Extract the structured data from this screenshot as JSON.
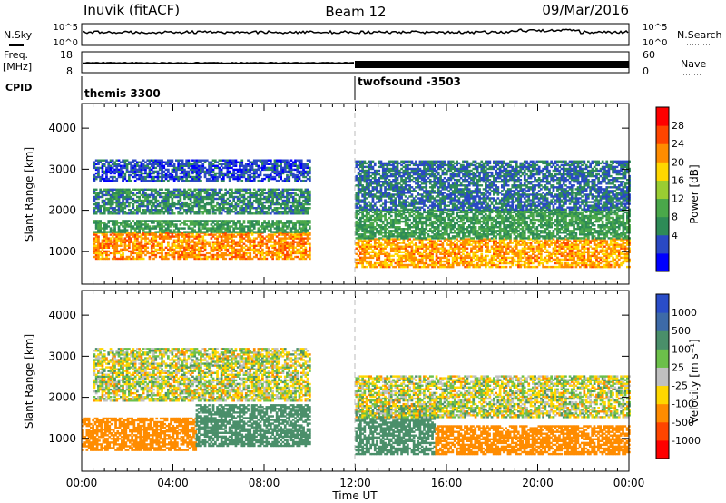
{
  "header": {
    "station": "Inuvik (fitACF)",
    "beam": "Beam 12",
    "date": "09/Mar/2016"
  },
  "top_panels": {
    "nsky_label": "N.Sky",
    "nsearch_label": "N.Search",
    "noise_ticks_left": [
      "10^5",
      "10^0"
    ],
    "noise_ticks_right": [
      "10^5",
      "10^0"
    ],
    "freq_label": "Freq.",
    "freq_unit": "[MHz]",
    "freq_ticks": [
      "18",
      "8"
    ],
    "nave_label": "Nave",
    "nave_ticks": [
      "60",
      "0"
    ],
    "cpid_label": "CPID",
    "cpid_programs": [
      {
        "name": "themis 3300",
        "start_hour": 0
      },
      {
        "name": "twofsound -3503",
        "start_hour": 12
      }
    ]
  },
  "axes": {
    "ylabel": "Slant Range [km]",
    "xlabel": "Time UT",
    "y_ticks": [
      1000,
      2000,
      3000,
      4000
    ],
    "x_ticks": [
      "00:00",
      "04:00",
      "08:00",
      "12:00",
      "16:00",
      "20:00",
      "00:00"
    ],
    "ylim": [
      200,
      4600
    ],
    "xlim_hours": [
      0,
      24
    ]
  },
  "colorbars": {
    "power": {
      "label": "Power [dB]",
      "ticks": [
        "28",
        "24",
        "20",
        "16",
        "12",
        "8",
        "4"
      ],
      "colors": [
        "#0000ff",
        "#2a49c4",
        "#2e8b57",
        "#4aa84a",
        "#9acd32",
        "#ffd700",
        "#ff8c00",
        "#ff4500",
        "#ff0000"
      ]
    },
    "velocity": {
      "label": "Velocity [m s⁻¹]",
      "ticks": [
        "1000",
        "500",
        "100",
        "25",
        "-25",
        "-100",
        "-500",
        "-1000"
      ],
      "colors": [
        "#2a4dc8",
        "#3d6aa8",
        "#4a8f6a",
        "#6cc04a",
        "#c0c0c0",
        "#ffd700",
        "#ff8c00",
        "#ff4500",
        "#ff0000"
      ]
    }
  },
  "chart_data": {
    "type": "heatmap",
    "panels": [
      {
        "name": "Power",
        "units": "dB",
        "bands": [
          {
            "t0": 0.5,
            "t1": 10,
            "r0": 800,
            "r1": 1450,
            "value": 26
          },
          {
            "t0": 0.5,
            "t1": 10,
            "r0": 1450,
            "r1": 1750,
            "value": 12
          },
          {
            "t0": 0.5,
            "t1": 10,
            "r0": 1900,
            "r1": 2500,
            "value": 10
          },
          {
            "t0": 0.5,
            "t1": 10,
            "r0": 2700,
            "r1": 3200,
            "value": 6
          },
          {
            "t0": 12,
            "t1": 24,
            "r0": 600,
            "r1": 1300,
            "value": 25
          },
          {
            "t0": 12,
            "t1": 24,
            "r0": 1300,
            "r1": 2000,
            "value": 12
          },
          {
            "t0": 12,
            "t1": 24,
            "r0": 2000,
            "r1": 3200,
            "value": 8
          }
        ]
      },
      {
        "name": "Velocity",
        "units": "m s^-1",
        "bands": [
          {
            "t0": 0,
            "t1": 5,
            "r0": 700,
            "r1": 1500,
            "value": -250
          },
          {
            "t0": 5,
            "t1": 10,
            "r0": 800,
            "r1": 1800,
            "value": 300
          },
          {
            "t0": 0.5,
            "t1": 10,
            "r0": 1900,
            "r1": 3200,
            "value": 0
          },
          {
            "t0": 12,
            "t1": 15.5,
            "r0": 600,
            "r1": 1800,
            "value": 300
          },
          {
            "t0": 15.5,
            "t1": 24,
            "r0": 600,
            "r1": 1300,
            "value": -300
          },
          {
            "t0": 12,
            "t1": 24,
            "r0": 1500,
            "r1": 2500,
            "value": 0
          }
        ]
      }
    ]
  }
}
